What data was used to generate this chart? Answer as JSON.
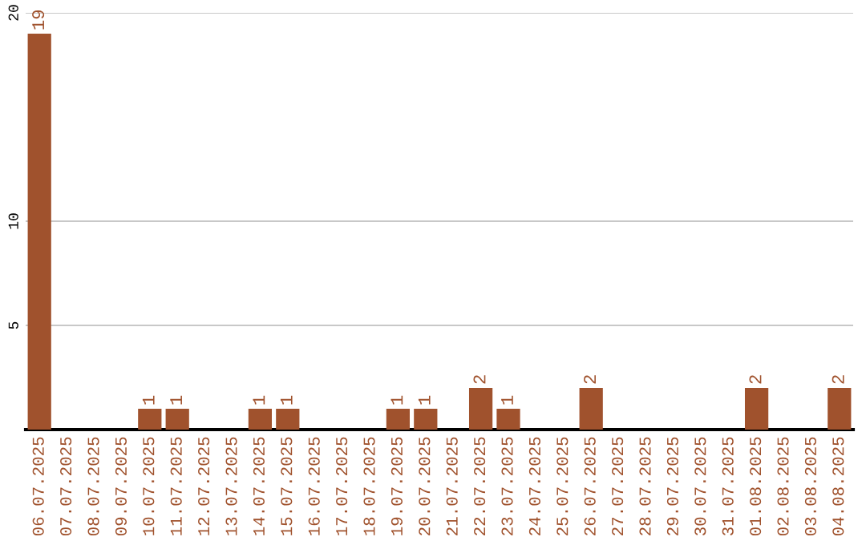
{
  "chart_data": {
    "type": "bar",
    "categories": [
      "06.07.2025",
      "07.07.2025",
      "08.07.2025",
      "09.07.2025",
      "10.07.2025",
      "11.07.2025",
      "12.07.2025",
      "13.07.2025",
      "14.07.2025",
      "15.07.2025",
      "16.07.2025",
      "17.07.2025",
      "18.07.2025",
      "19.07.2025",
      "20.07.2025",
      "21.07.2025",
      "22.07.2025",
      "23.07.2025",
      "24.07.2025",
      "25.07.2025",
      "26.07.2025",
      "27.07.2025",
      "28.07.2025",
      "29.07.2025",
      "30.07.2025",
      "31.07.2025",
      "01.08.2025",
      "02.08.2025",
      "03.08.2025",
      "04.08.2025"
    ],
    "values": [
      19,
      0,
      0,
      0,
      1,
      1,
      0,
      0,
      1,
      1,
      0,
      0,
      0,
      1,
      1,
      0,
      2,
      1,
      0,
      0,
      2,
      0,
      0,
      0,
      0,
      0,
      2,
      0,
      0,
      2
    ],
    "value_labels": [
      "19",
      null,
      null,
      null,
      "1",
      "1",
      null,
      null,
      "1",
      "1",
      null,
      null,
      null,
      "1",
      "1",
      null,
      "2",
      "1",
      null,
      null,
      "2",
      null,
      null,
      null,
      null,
      null,
      "2",
      null,
      null,
      "2"
    ],
    "color": "#a0522d",
    "ylim": [
      0,
      20
    ],
    "yticks": [
      5,
      10,
      20
    ],
    "grid": "y"
  }
}
